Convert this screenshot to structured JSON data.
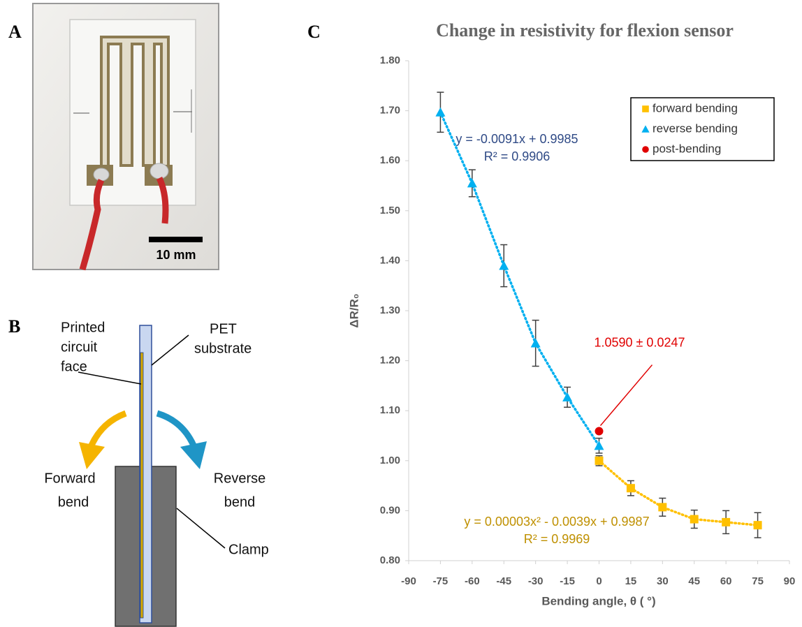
{
  "panels": {
    "a": "A",
    "b": "B",
    "c": "C"
  },
  "photo": {
    "scale_bar": "10 mm"
  },
  "diagram": {
    "circuit_face": [
      "Printed",
      "circuit",
      "face"
    ],
    "substrate": [
      "PET",
      "substrate"
    ],
    "forward": [
      "Forward",
      "bend"
    ],
    "reverse": [
      "Reverse",
      "bend"
    ],
    "clamp": "Clamp"
  },
  "chart_data": {
    "type": "scatter",
    "title": "Change in resistivity for flexion sensor",
    "x_label": "Bending angle, θ ( °)",
    "y_label": "ΔR/R₀",
    "xlim": [
      -90,
      90
    ],
    "xticks": [
      -90,
      -75,
      -60,
      -45,
      -30,
      -15,
      0,
      15,
      30,
      45,
      60,
      75,
      90
    ],
    "ylim": [
      0.8,
      1.8
    ],
    "yticks": [
      {
        "value": 0.8,
        "label": "0.80"
      },
      {
        "value": 0.9,
        "label": "0.90"
      },
      {
        "value": 1.0,
        "label": "1.00"
      },
      {
        "value": 1.1,
        "label": "1.10"
      },
      {
        "value": 1.2,
        "label": "1.20"
      },
      {
        "value": 1.3,
        "label": "1.30"
      },
      {
        "value": 1.4,
        "label": "1.40"
      },
      {
        "value": 1.5,
        "label": "1.50"
      },
      {
        "value": 1.6,
        "label": "1.60"
      },
      {
        "value": 1.7,
        "label": "1.70"
      },
      {
        "value": 1.8,
        "label": "1.80"
      }
    ],
    "legend": "upper right",
    "series": [
      {
        "name": "forward bending",
        "color": "#FFC000",
        "marker": "square",
        "trendline": true,
        "x": [
          0,
          15,
          30,
          45,
          60,
          75
        ],
        "values": [
          1.0,
          0.945,
          0.907,
          0.883,
          0.877,
          0.871
        ],
        "errors": [
          0.01,
          0.015,
          0.018,
          0.018,
          0.023,
          0.025
        ],
        "equation": "y = 0.00003x² - 0.0039x + 0.9987",
        "r_squared": "R² = 0.9969",
        "equation_color": "#BF9000"
      },
      {
        "name": "reverse bending",
        "color": "#00B0F0",
        "marker": "triangle",
        "trendline": true,
        "x": [
          -75,
          -60,
          -45,
          -30,
          -15,
          0
        ],
        "values": [
          1.697,
          1.555,
          1.39,
          1.235,
          1.127,
          1.03
        ],
        "errors": [
          0.04,
          0.027,
          0.042,
          0.046,
          0.02,
          0.015
        ],
        "equation": "y = -0.0091x + 0.9985",
        "r_squared": "R² = 0.9906",
        "equation_color": "#2F4A86"
      },
      {
        "name": "post-bending",
        "color": "#E00000",
        "marker": "circle",
        "x": [
          0
        ],
        "values": [
          1.059
        ],
        "label": "1.0590 ± 0.0247"
      }
    ]
  }
}
